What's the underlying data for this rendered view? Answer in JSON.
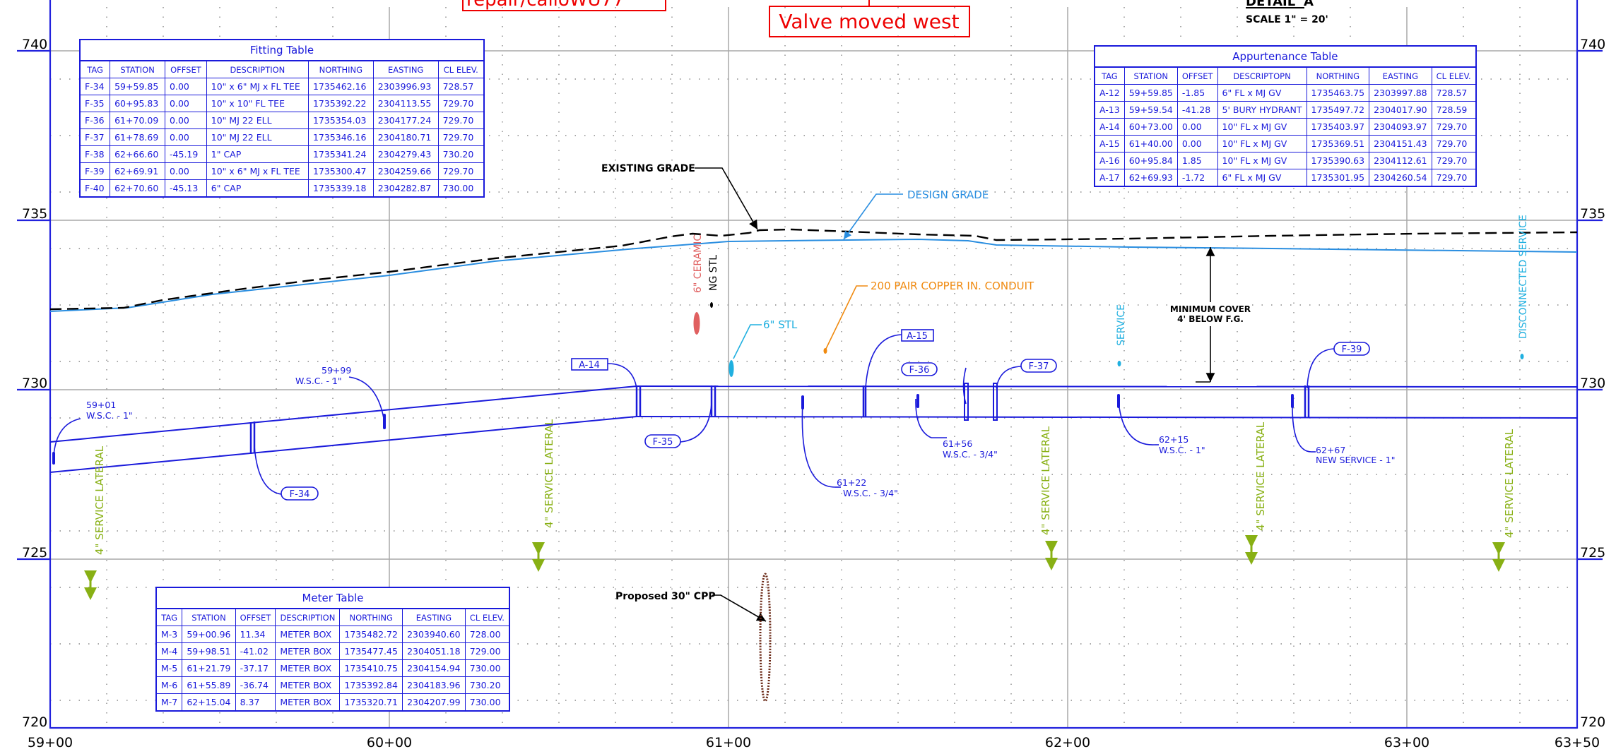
{
  "colors": {
    "frame": "#2222dd",
    "grid_line": "#a9a9a9",
    "grid_dot": "#8a8a8a",
    "pipe": "#1a1adb",
    "existing_grade": "#000000",
    "design_grade": "#2a8ee0",
    "service_lateral": "#88b014",
    "copper_conduit": "#f08a10",
    "stl_6": "#20b0e0",
    "ceramic": "#e06060",
    "ng_stl": "#000000",
    "cpp": "#6b2a18",
    "markup": "#ee0000",
    "min_cover": "#000000"
  },
  "markups": {
    "note_top_partial": "repair/calloWU77",
    "valve_moved": "Valve moved west"
  },
  "title_block": {
    "detail": "DETAIL 'A'",
    "scale": "SCALE 1\" = 20'"
  },
  "axes": {
    "elevation_ticks": [
      "740",
      "735",
      "730",
      "725",
      "720"
    ],
    "station_ticks": [
      "59+00",
      "60+00",
      "61+00",
      "62+00",
      "63+00",
      "63+50"
    ]
  },
  "profile_labels": {
    "existing_grade": "EXISTING GRADE",
    "design_grade": "DESIGN GRADE",
    "copper_conduit": "200 PAIR COPPER IN. CONDUIT",
    "stl_6": "6\" STL",
    "ceramic": "6\" CERAMIC",
    "ng_stl": "NG STL",
    "service": "SERVICE",
    "disconnected_service": "DISCONNECTED SERVICE",
    "minimum_cover_line1": "MINIMUM COVER",
    "minimum_cover_line2": "4' BELOW F.G.",
    "proposed_cpp": "Proposed 30\" CPP",
    "service_lateral": "4\" SERVICE LATERAL"
  },
  "callouts": {
    "f34": "F-34",
    "f35": "F-35",
    "f36": "F-36",
    "f37": "F-37",
    "f39": "F-39",
    "a14": "A-14",
    "a15": "A-15",
    "wsc_5901_sta": "59+01",
    "wsc_5901_desc": "W.S.C. -  1\"",
    "wsc_5999_sta": "59+99",
    "wsc_5999_desc": "W.S.C. - 1\"",
    "wsc_6122_sta": "61+22",
    "wsc_6122_desc": "W.S.C. - 3/4\"",
    "wsc_6156_sta": "61+56",
    "wsc_6156_desc": "W.S.C. - 3/4\"",
    "wsc_6215_sta": "62+15",
    "wsc_6215_desc": "W.S.C. -  1\"",
    "ns_6267_sta": "62+67",
    "ns_6267_desc": "NEW SERVICE - 1\""
  },
  "fitting_table": {
    "title": "Fitting Table",
    "headers": [
      "TAG",
      "STATION",
      "OFFSET",
      "DESCRIPTION",
      "NORTHING",
      "EASTING",
      "CL ELEV."
    ],
    "rows": [
      [
        "F-34",
        "59+59.85",
        "0.00",
        "10\" x  6\" MJ x FL TEE",
        "1735462.16",
        "2303996.93",
        "728.57"
      ],
      [
        "F-35",
        "60+95.83",
        "0.00",
        "10\" x  10\"  FL TEE",
        "1735392.22",
        "2304113.55",
        "729.70"
      ],
      [
        "F-36",
        "61+70.09",
        "0.00",
        "10\" MJ 22 ELL",
        "1735354.03",
        "2304177.24",
        "729.70"
      ],
      [
        "F-37",
        "61+78.69",
        "0.00",
        "10\" MJ 22 ELL",
        "1735346.16",
        "2304180.71",
        "729.70"
      ],
      [
        "F-38",
        "62+66.60",
        "-45.19",
        "1\" CAP",
        "1735341.24",
        "2304279.43",
        "730.20"
      ],
      [
        "F-39",
        "62+69.91",
        "0.00",
        "10\" x  6\" MJ x FL TEE",
        "1735300.47",
        "2304259.66",
        "729.70"
      ],
      [
        "F-40",
        "62+70.60",
        "-45.13",
        "6\" CAP",
        "1735339.18",
        "2304282.87",
        "730.00"
      ]
    ]
  },
  "appurtenance_table": {
    "title": "Appurtenance Table",
    "headers": [
      "TAG",
      "STATION",
      "OFFSET",
      "DESCRIPTOPN",
      "NORTHING",
      "EASTING",
      "CL ELEV."
    ],
    "rows": [
      [
        "A-12",
        "59+59.85",
        "-1.85",
        "6\" FL x MJ GV",
        "1735463.75",
        "2303997.88",
        "728.57"
      ],
      [
        "A-13",
        "59+59.54",
        "-41.28",
        "5' BURY HYDRANT",
        "1735497.72",
        "2304017.90",
        "728.59"
      ],
      [
        "A-14",
        "60+73.00",
        "0.00",
        "10\" FL x MJ GV",
        "1735403.97",
        "2304093.97",
        "729.70"
      ],
      [
        "A-15",
        "61+40.00",
        "0.00",
        "10\" FL x MJ GV",
        "1735369.51",
        "2304151.43",
        "729.70"
      ],
      [
        "A-16",
        "60+95.84",
        "1.85",
        "10\" FL x MJ GV",
        "1735390.63",
        "2304112.61",
        "729.70"
      ],
      [
        "A-17",
        "62+69.93",
        "-1.72",
        "6\" FL x MJ GV",
        "1735301.95",
        "2304260.54",
        "729.70"
      ]
    ]
  },
  "meter_table": {
    "title": "Meter Table",
    "headers": [
      "TAG",
      "STATION",
      "OFFSET",
      "DESCRIPTION",
      "NORTHING",
      "EASTING",
      "CL ELEV."
    ],
    "rows": [
      [
        "M-3",
        "59+00.96",
        "11.34",
        "METER BOX",
        "1735482.72",
        "2303940.60",
        "728.00"
      ],
      [
        "M-4",
        "59+98.51",
        "-41.02",
        "METER BOX",
        "1735477.45",
        "2304051.18",
        "729.00"
      ],
      [
        "M-5",
        "61+21.79",
        "-37.17",
        "METER BOX",
        "1735410.75",
        "2304154.94",
        "730.00"
      ],
      [
        "M-6",
        "61+55.89",
        "-36.74",
        "METER BOX",
        "1735392.84",
        "2304183.96",
        "730.20"
      ],
      [
        "M-7",
        "62+15.04",
        "8.37",
        "METER BOX",
        "1735320.71",
        "2304207.99",
        "730.00"
      ]
    ]
  }
}
